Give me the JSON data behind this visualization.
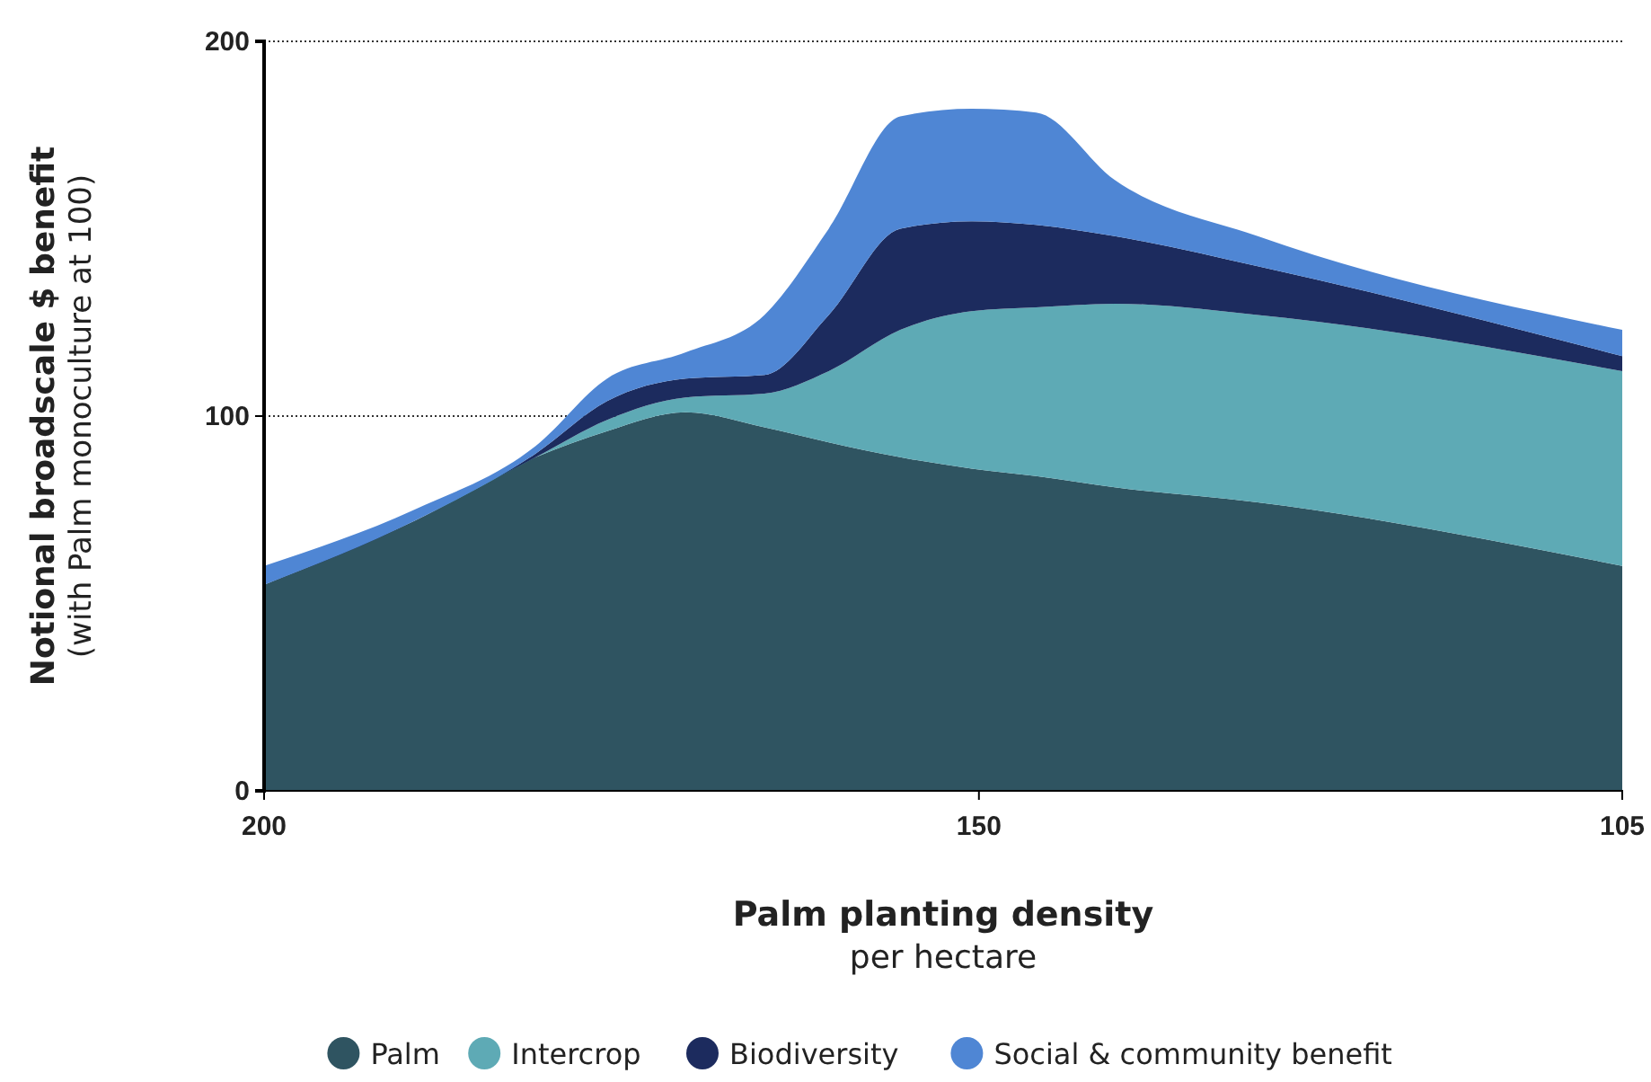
{
  "chart_data": {
    "type": "area",
    "stacked": true,
    "xlabel": "Palm planting density\nper hectare",
    "ylabel": "Notional broadscale $ benefit\n(with Palm monoculture at 100)",
    "x": [
      200,
      189.5,
      181,
      176,
      170.5,
      165,
      160.5,
      155.5,
      150.5,
      146,
      140.5,
      130.5,
      105
    ],
    "series": [
      {
        "name": "Palm",
        "color": "#2f5461",
        "values": [
          55,
          72,
          89,
          96,
          101,
          97,
          93,
          89,
          86,
          84,
          81,
          77,
          60
        ]
      },
      {
        "name": "Intercrop",
        "color": "#5eaab5",
        "values": [
          0,
          0,
          0,
          3,
          4,
          9,
          19,
          34,
          42,
          45,
          49,
          50,
          52
        ]
      },
      {
        "name": "Biodiversity",
        "color": "#1c2b5e",
        "values": [
          0,
          0,
          1,
          5,
          5,
          5,
          15,
          27,
          24,
          22,
          18,
          13,
          4
        ]
      },
      {
        "name": "Social & community benefit",
        "color": "#4f86d4",
        "values": [
          5,
          3,
          2,
          6,
          7,
          16,
          23,
          30,
          30,
          30,
          15,
          8,
          7
        ]
      }
    ],
    "xlim": [
      200,
      105
    ],
    "xticks": [
      200,
      150,
      105
    ],
    "ylim": [
      0,
      200
    ],
    "yticks": [
      0,
      100,
      200
    ],
    "grid": "y",
    "legend": "bottom"
  }
}
